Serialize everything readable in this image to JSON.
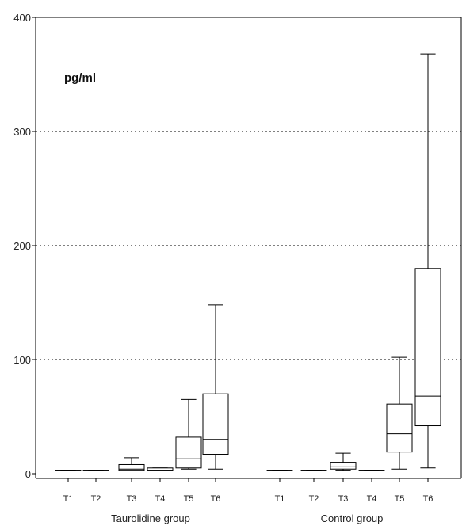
{
  "chart_data": {
    "type": "box",
    "unit_label": "pg/ml",
    "ylim": [
      0,
      400
    ],
    "y_ticks": [
      "0",
      "100",
      "200",
      "300",
      "400"
    ],
    "grid": "dotted horizontal at 100, 200, 300",
    "groups": [
      {
        "name": "Taurolidine group",
        "boxes": [
          {
            "label": "T1",
            "min": 3,
            "q1": 3,
            "median": 3,
            "q3": 3,
            "max": 3
          },
          {
            "label": "T2",
            "min": 3,
            "q1": 3,
            "median": 3,
            "q3": 3,
            "max": 3
          },
          {
            "label": "T3",
            "min": 3,
            "q1": 3,
            "median": 4,
            "q3": 8,
            "max": 14
          },
          {
            "label": "T4",
            "min": 3,
            "q1": 3,
            "median": 3,
            "q3": 5,
            "max": 5
          },
          {
            "label": "T5",
            "min": 4,
            "q1": 5,
            "median": 13,
            "q3": 32,
            "max": 65
          },
          {
            "label": "T6",
            "min": 4,
            "q1": 17,
            "median": 30,
            "q3": 70,
            "max": 148
          }
        ]
      },
      {
        "name": "Control group",
        "boxes": [
          {
            "label": "T1",
            "min": 3,
            "q1": 3,
            "median": 3,
            "q3": 3,
            "max": 3
          },
          {
            "label": "T2",
            "min": 3,
            "q1": 3,
            "median": 3,
            "q3": 3,
            "max": 3
          },
          {
            "label": "T3",
            "min": 3,
            "q1": 4,
            "median": 6,
            "q3": 10,
            "max": 18
          },
          {
            "label": "T4",
            "min": 3,
            "q1": 3,
            "median": 3,
            "q3": 3,
            "max": 3
          },
          {
            "label": "T5",
            "min": 4,
            "q1": 19,
            "median": 35,
            "q3": 61,
            "max": 102
          },
          {
            "label": "T6",
            "min": 5,
            "q1": 42,
            "median": 68,
            "q3": 180,
            "max": 368
          }
        ]
      }
    ]
  }
}
